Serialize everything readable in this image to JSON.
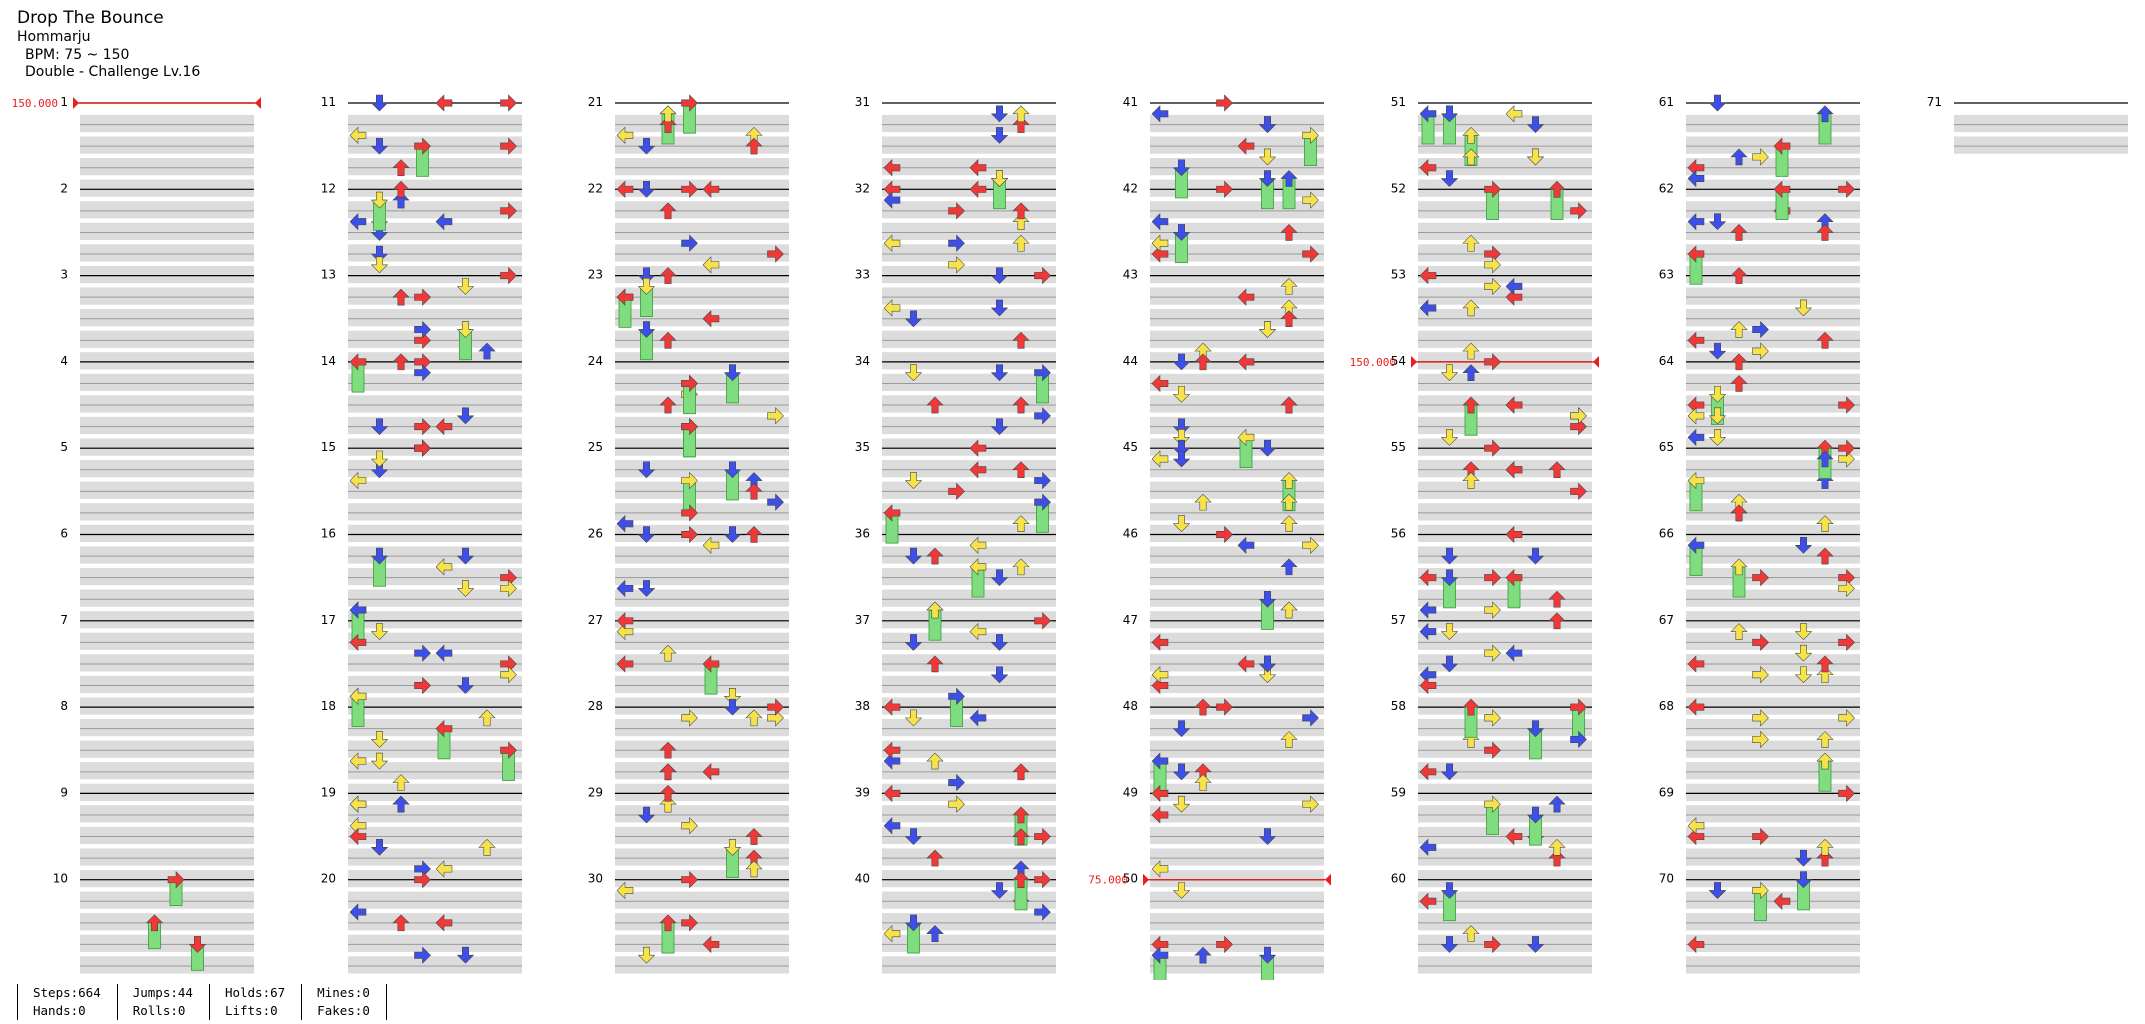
{
  "song": {
    "title": "Drop The Bounce",
    "artist": "Hommarju",
    "bpm_label": "BPM: 75 ~ 150",
    "difficulty_label": "Double - Challenge Lv.16"
  },
  "measures": {
    "first": 1,
    "last": 71,
    "per_column": 10,
    "label_every": 1
  },
  "bpm_changes": [
    {
      "measure": 1,
      "label": "150.000"
    },
    {
      "measure": 50,
      "label": "75.000"
    },
    {
      "measure": 54,
      "label": "150.000"
    }
  ],
  "colors": {
    "note_red": "#ef3838",
    "note_blue": "#3d4fe6",
    "note_yellow": "#f6e24b",
    "hold_green": "#7fdc7f",
    "roll_orange": "#f59b4a",
    "bpm_line": "#e82020",
    "row_shade": "#dcdcdc"
  },
  "stats": [
    {
      "a": "Steps:664",
      "b": "Hands:0"
    },
    {
      "a": "Jumps:44",
      "b": "Rolls:0"
    },
    {
      "a": "Holds:67",
      "b": "Lifts:0"
    },
    {
      "a": "Mines:0",
      "b": "Fakes:0"
    }
  ]
}
